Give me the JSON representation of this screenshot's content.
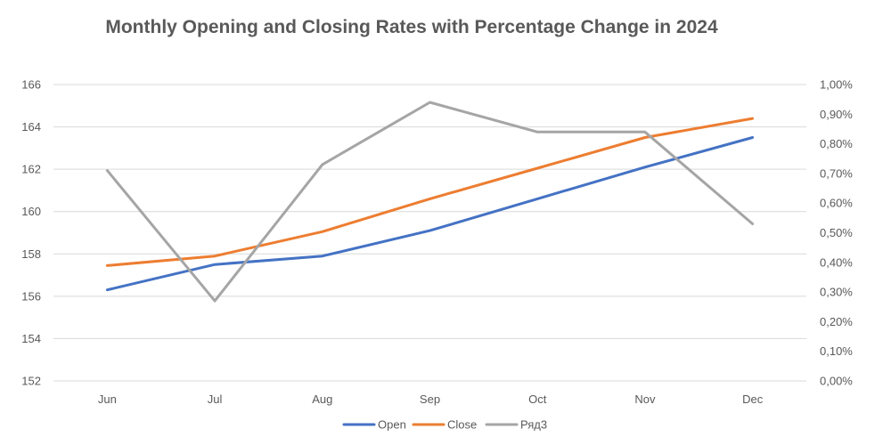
{
  "chart_data": {
    "type": "line",
    "title": "Monthly Opening and Closing Rates with Percentage Change in 2024",
    "categories": [
      "Jun",
      "Jul",
      "Aug",
      "Sep",
      "Oct",
      "Nov",
      "Dec"
    ],
    "series": [
      {
        "name": "Open",
        "axis": "left",
        "color": "#4472C4",
        "values": [
          156.3,
          157.5,
          157.9,
          159.1,
          160.6,
          162.1,
          163.5
        ]
      },
      {
        "name": "Close",
        "axis": "left",
        "color": "#ED7D31",
        "values": [
          157.45,
          157.9,
          159.05,
          160.6,
          162.05,
          163.5,
          164.4
        ]
      },
      {
        "name": "Ряд3",
        "axis": "right",
        "color": "#A5A5A5",
        "values": [
          0.0071,
          0.0027,
          0.0073,
          0.0094,
          0.0084,
          0.0084,
          0.0053
        ]
      }
    ],
    "y_left": {
      "min": 152,
      "max": 166,
      "ticks": [
        "152",
        "154",
        "156",
        "158",
        "160",
        "162",
        "164",
        "166"
      ]
    },
    "y_right": {
      "min": 0,
      "max": 0.01,
      "ticks": [
        "0,00%",
        "0,10%",
        "0,20%",
        "0,30%",
        "0,40%",
        "0,50%",
        "0,60%",
        "0,70%",
        "0,80%",
        "0,90%",
        "1,00%"
      ]
    },
    "grid": true,
    "legend_position": "bottom",
    "colors": {
      "grid": "#D9D9D9",
      "text": "#595959"
    }
  }
}
